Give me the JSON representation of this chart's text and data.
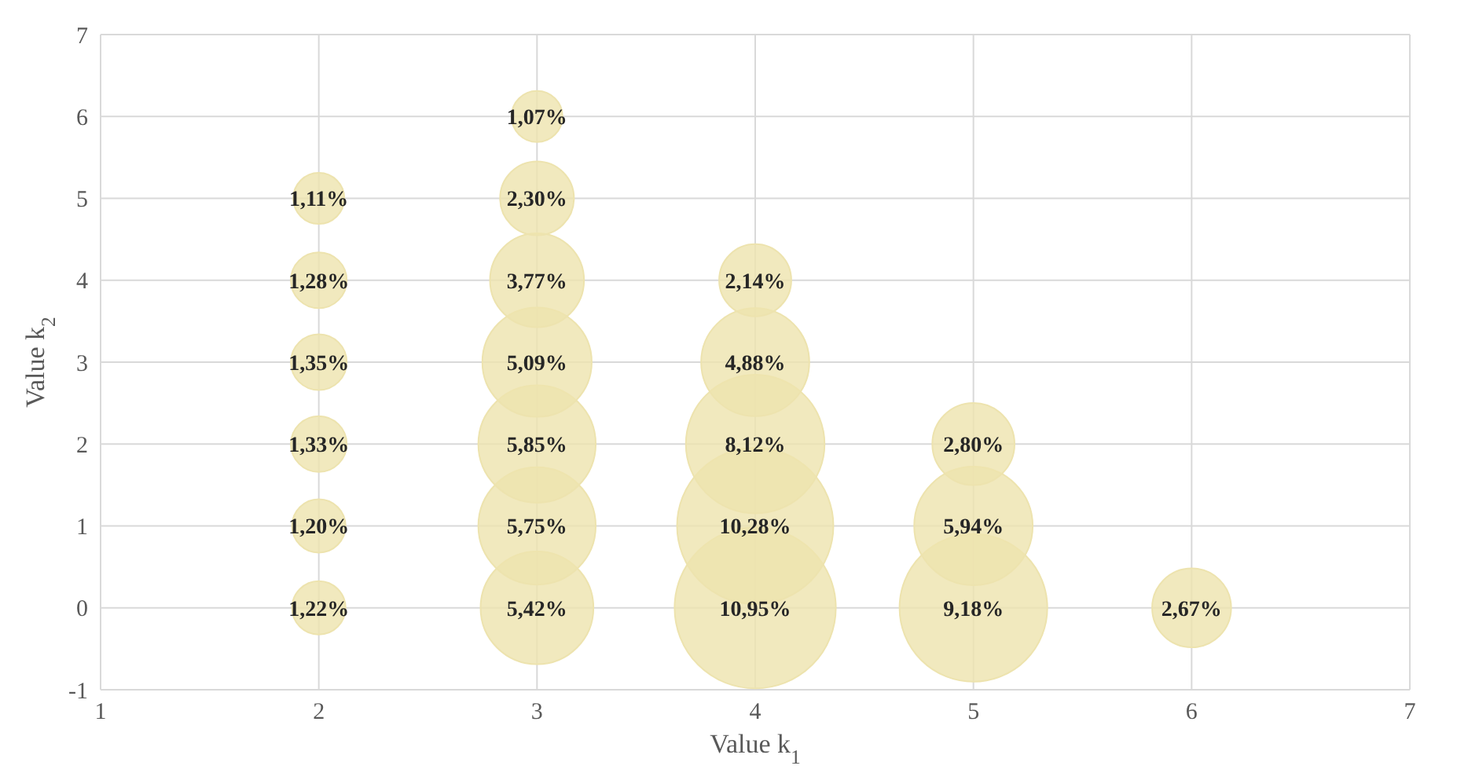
{
  "chart_data": {
    "type": "bubble",
    "xlabel": "Value k$_{1}$",
    "ylabel": "Value k$_{2}$",
    "x": [
      2,
      2,
      2,
      2,
      2,
      2,
      3,
      3,
      3,
      3,
      3,
      3,
      3,
      4,
      4,
      4,
      4,
      4,
      5,
      5,
      5,
      6
    ],
    "values": [
      0,
      1,
      2,
      3,
      4,
      5,
      0,
      1,
      2,
      3,
      4,
      5,
      6,
      0,
      1,
      2,
      3,
      4,
      0,
      1,
      2,
      0
    ],
    "sizes": [
      0.11,
      0.11,
      0.12,
      0.12,
      0.12,
      0.1,
      0.49,
      0.53,
      0.53,
      0.46,
      0.34,
      0.21,
      0.1,
      1,
      0.94,
      0.74,
      0.45,
      0.2,
      0.84,
      0.54,
      0.26,
      0.24
    ],
    "annotations": [
      {
        "text": "1,22%",
        "x": 2,
        "y": 0
      },
      {
        "text": "1,20%",
        "x": 2,
        "y": 1
      },
      {
        "text": "1,33%",
        "x": 2,
        "y": 2
      },
      {
        "text": "1,35%",
        "x": 2,
        "y": 3
      },
      {
        "text": "1,28%",
        "x": 2,
        "y": 4
      },
      {
        "text": "1,11%",
        "x": 2,
        "y": 5
      },
      {
        "text": "5,42%",
        "x": 3,
        "y": 0
      },
      {
        "text": "5,75%",
        "x": 3,
        "y": 1
      },
      {
        "text": "5,85%",
        "x": 3,
        "y": 2
      },
      {
        "text": "5,09%",
        "x": 3,
        "y": 3
      },
      {
        "text": "3,77%",
        "x": 3,
        "y": 4
      },
      {
        "text": "2,30%",
        "x": 3,
        "y": 5
      },
      {
        "text": "1,07%",
        "x": 3,
        "y": 6
      },
      {
        "text": "10,95%",
        "x": 4,
        "y": 0
      },
      {
        "text": "10,28%",
        "x": 4,
        "y": 1
      },
      {
        "text": "8,12%",
        "x": 4,
        "y": 2
      },
      {
        "text": "4,88%",
        "x": 4,
        "y": 3
      },
      {
        "text": "2,14%",
        "x": 4,
        "y": 4
      },
      {
        "text": "9,18%",
        "x": 5,
        "y": 0
      },
      {
        "text": "5,94%",
        "x": 5,
        "y": 1
      },
      {
        "text": "2,80%",
        "x": 5,
        "y": 2
      },
      {
        "text": "2,67%",
        "x": 6,
        "y": 0
      }
    ],
    "color": "#ede3ae",
    "xlim": [
      1,
      7
    ],
    "xticks": [
      1,
      2,
      3,
      4,
      5,
      6,
      7
    ],
    "ylim": [
      -1,
      7
    ],
    "yticks": [
      -1,
      0,
      1,
      2,
      3,
      4,
      5,
      6,
      7
    ],
    "grid": true
  }
}
